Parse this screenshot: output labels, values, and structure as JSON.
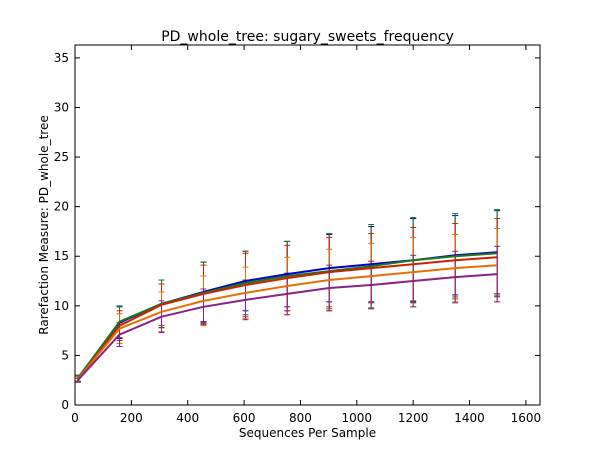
{
  "chart_data": {
    "type": "line",
    "title": "PD_whole_tree: sugary_sweets_frequency",
    "xlabel": "Sequences Per Sample",
    "ylabel": "Rarefaction Measure: PD_whole_tree",
    "xlim": [
      0,
      1650
    ],
    "ylim": [
      0,
      36.3
    ],
    "xticks": [
      0,
      200,
      400,
      600,
      800,
      1000,
      1200,
      1400,
      1600
    ],
    "yticks": [
      0,
      5,
      10,
      15,
      20,
      25,
      30,
      35
    ],
    "x": [
      10,
      158,
      307,
      456,
      605,
      753,
      902,
      1051,
      1200,
      1349,
      1498
    ],
    "series": [
      {
        "name": "series-blue",
        "color": "#0000cc",
        "values": [
          2.7,
          8.3,
          10.2,
          11.4,
          12.5,
          13.2,
          13.8,
          14.2,
          14.6,
          15.1,
          15.4
        ],
        "errors": [
          0.3,
          1.6,
          2.4,
          3.0,
          3.0,
          3.3,
          3.4,
          3.8,
          4.2,
          4.0,
          4.2
        ]
      },
      {
        "name": "series-green",
        "color": "#1a7a1a",
        "values": [
          2.7,
          8.4,
          10.2,
          11.3,
          12.3,
          13.0,
          13.5,
          14.0,
          14.6,
          15.0,
          15.3
        ],
        "errors": [
          0.3,
          1.6,
          2.4,
          3.1,
          3.2,
          3.5,
          3.8,
          4.2,
          4.3,
          4.3,
          4.4
        ]
      },
      {
        "name": "series-red",
        "color": "#cc2200",
        "values": [
          2.6,
          8.0,
          10.1,
          11.2,
          12.1,
          12.8,
          13.4,
          13.8,
          14.2,
          14.6,
          14.9
        ],
        "errors": [
          0.3,
          1.5,
          2.1,
          2.9,
          3.2,
          3.3,
          3.5,
          3.5,
          3.7,
          3.7,
          3.9
        ]
      },
      {
        "name": "series-orange",
        "color": "#e87000",
        "values": [
          2.6,
          7.7,
          9.4,
          10.5,
          11.3,
          12.0,
          12.6,
          13.0,
          13.4,
          13.8,
          14.1
        ],
        "errors": [
          0.3,
          1.5,
          2.0,
          2.5,
          2.6,
          2.9,
          3.1,
          3.3,
          3.5,
          3.4,
          3.7
        ]
      },
      {
        "name": "series-purple",
        "color": "#882288",
        "values": [
          2.5,
          7.1,
          8.9,
          9.9,
          10.6,
          11.2,
          11.8,
          12.1,
          12.5,
          12.9,
          13.2
        ],
        "errors": [
          0.2,
          1.2,
          1.6,
          1.8,
          2.0,
          2.1,
          2.3,
          2.4,
          2.6,
          2.6,
          2.8
        ]
      }
    ]
  }
}
